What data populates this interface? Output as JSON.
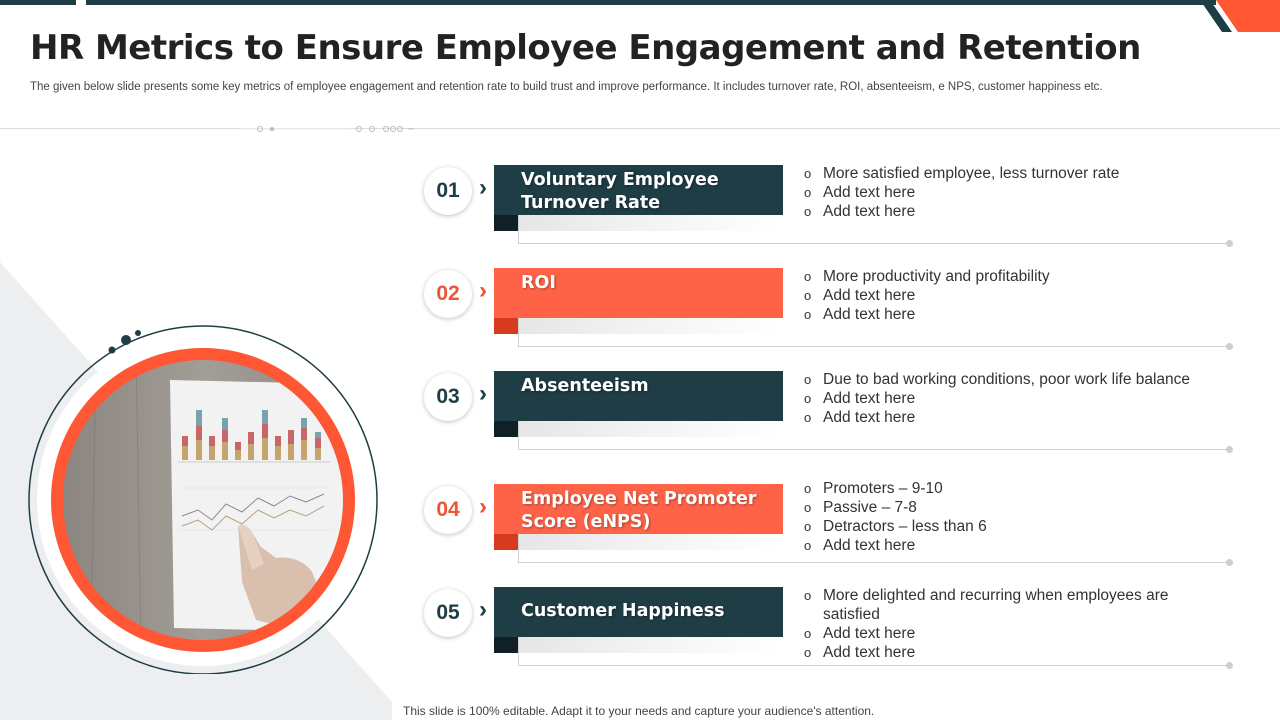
{
  "slide": {
    "title": "HR Metrics to Ensure Employee Engagement and Retention",
    "subtitle": "The given below slide presents some key metrics of employee engagement and retention rate to build trust and improve performance. It includes turnover rate, ROI,  absenteeism, e NPS, customer happiness etc.",
    "footer": "This slide is 100% editable. Adapt it to your needs and capture your audience's attention."
  },
  "colors": {
    "dark": "#1f3d45",
    "orange": "#ff6347",
    "dark_fold": "#112026",
    "orange_fold": "#d83a1e"
  },
  "metrics": [
    {
      "number": "01",
      "label": "Voluntary Employee Turnover Rate",
      "chevron": "›",
      "bullets": [
        "More satisfied employee, less turnover  rate",
        "Add text here",
        "Add text here"
      ]
    },
    {
      "number": "02",
      "label": "ROI",
      "chevron": "›",
      "bullets": [
        "More productivity  and profitability",
        "Add text here",
        "Add text here"
      ]
    },
    {
      "number": "03",
      "label": "Absenteeism",
      "chevron": "›",
      "bullets": [
        "Due to bad working conditions, poor work life balance",
        "Add text here",
        "Add text here"
      ]
    },
    {
      "number": "04",
      "label": "Employee Net Promoter Score (eNPS)",
      "chevron": "›",
      "bullets": [
        "Promoters – 9-10",
        "Passive – 7-8",
        "Detractors – less than 6",
        "Add text here"
      ]
    },
    {
      "number": "05",
      "label": "Customer Happiness",
      "chevron": "›",
      "bullets": [
        "More delighted and recurring when employees are satisfied",
        "Add text here",
        "Add text here"
      ]
    }
  ]
}
